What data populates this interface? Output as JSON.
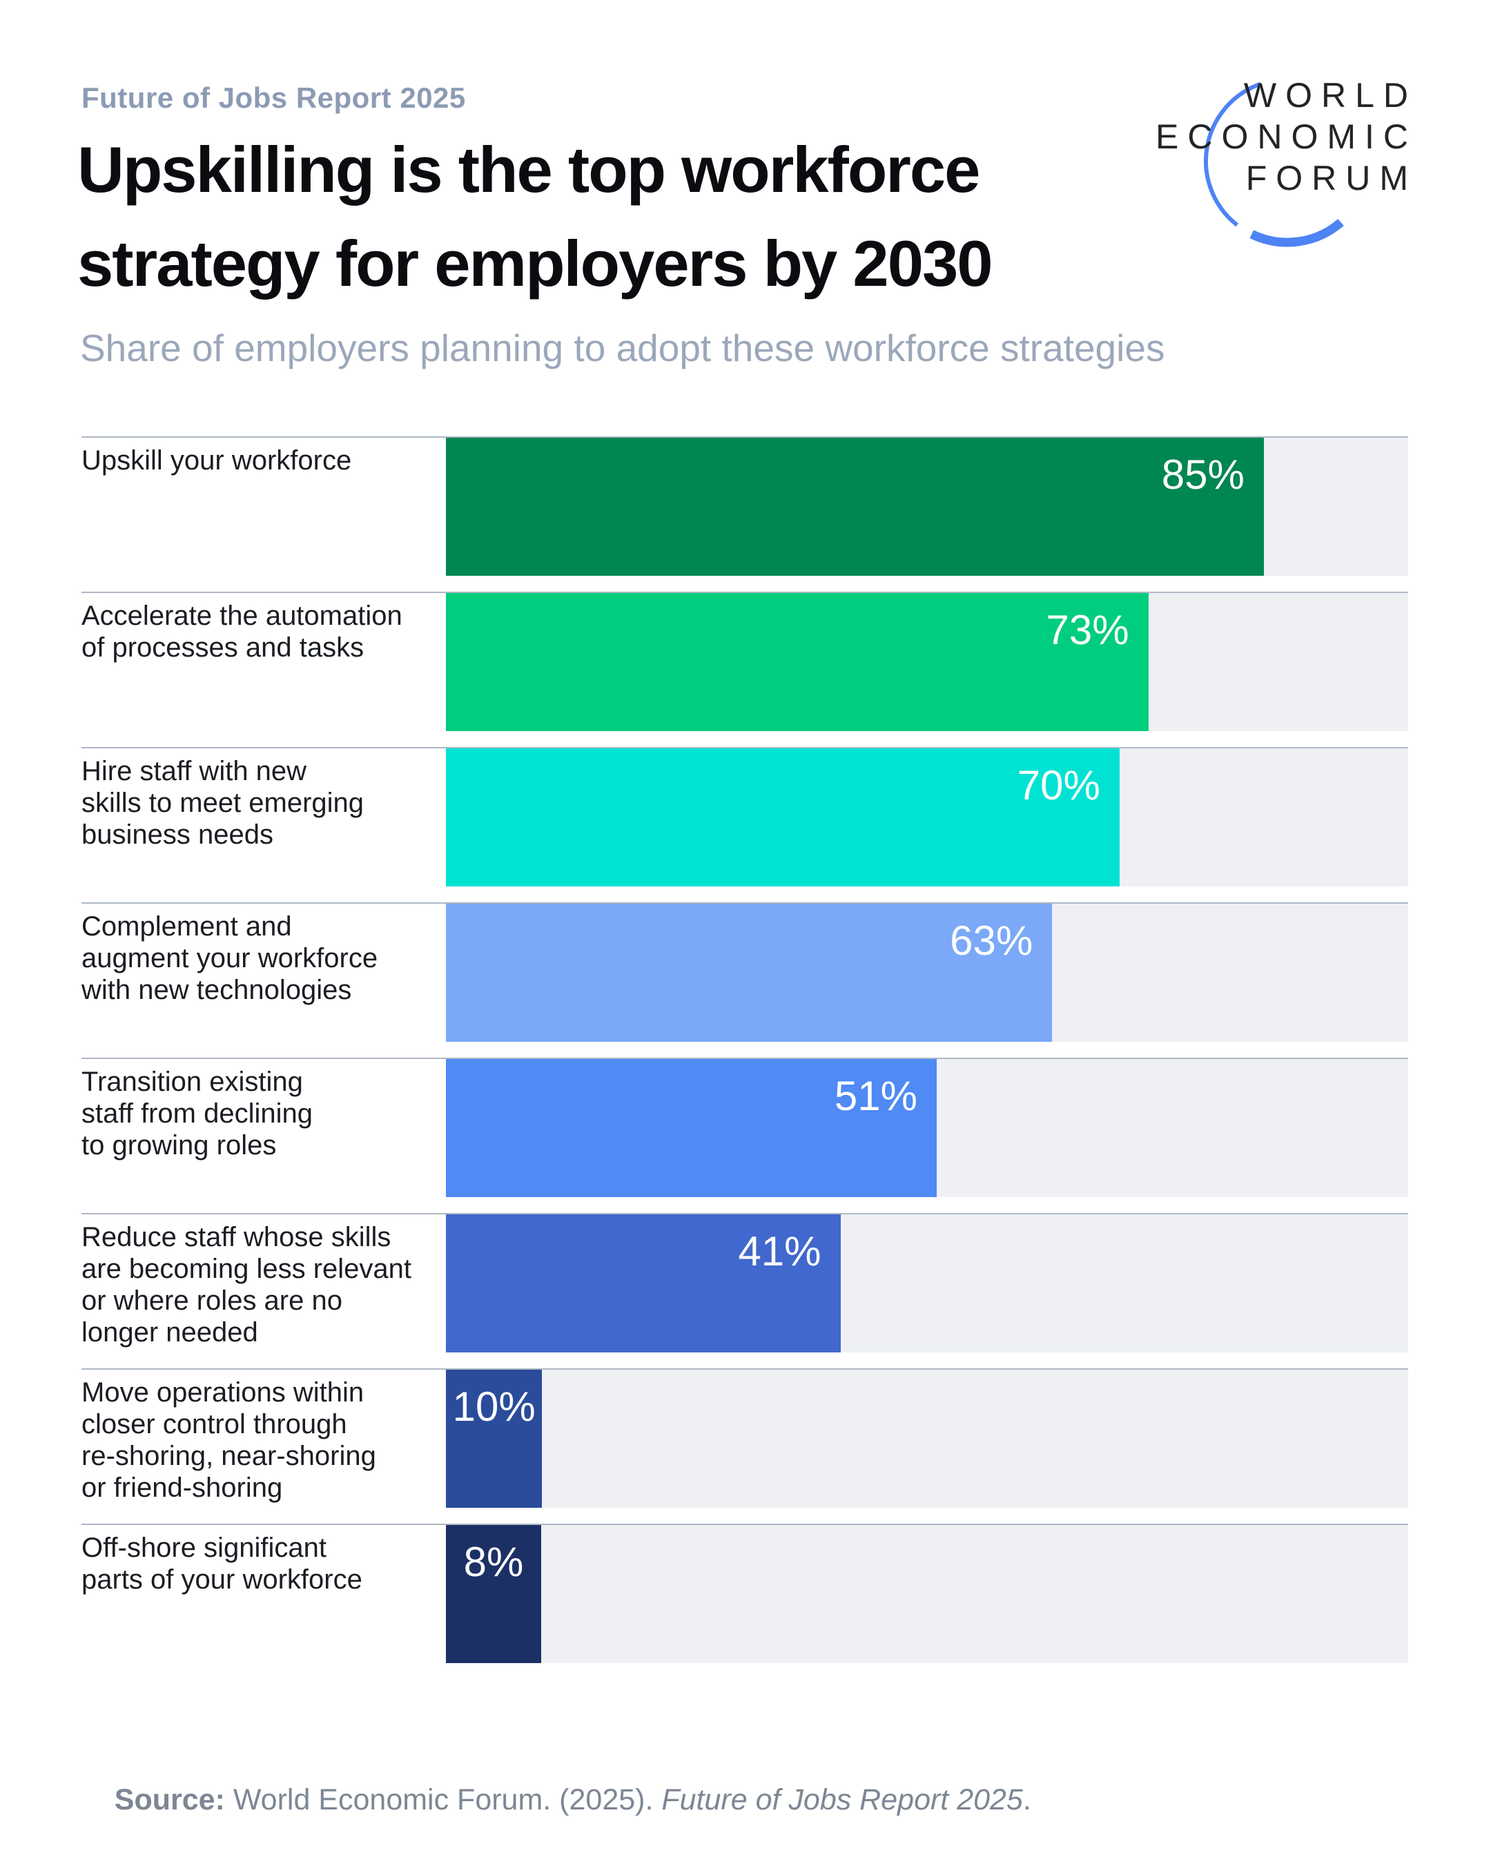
{
  "header": {
    "report_label": "Future of Jobs Report 2025",
    "title": "Upskilling is the top workforce\nstrategy for employers by 2030",
    "subtitle": "Share of employers planning to adopt these workforce strategies"
  },
  "logo": {
    "lines": [
      "WORLD",
      "ECONOMIC",
      "FORUM"
    ],
    "text_color": "#222528",
    "arc_color": "#4E83F4"
  },
  "chart_data": {
    "type": "bar",
    "orientation": "horizontal",
    "title": "Upskilling is the top workforce strategy for employers by 2030",
    "subtitle": "Share of employers planning to adopt these workforce strategies",
    "xlim": [
      0,
      100
    ],
    "grid": false,
    "legend": "none",
    "value_suffix": "%",
    "categories": [
      "Upskill your workforce",
      "Accelerate the automation\nof processes and tasks",
      "Hire staff with new\nskills to meet emerging\nbusiness needs",
      "Complement and\naugment your workforce\nwith new technologies",
      "Transition existing\nstaff from declining\nto growing roles",
      "Reduce staff whose skills\nare becoming less relevant\nor where roles are no\nlonger needed",
      "Move operations within\ncloser control through\nre-shoring, near-shoring\nor friend-shoring",
      "Off-shore significant\nparts of your workforce"
    ],
    "values": [
      85,
      73,
      70,
      63,
      51,
      41,
      10,
      8
    ],
    "value_labels": [
      "85%",
      "73%",
      "70%",
      "63%",
      "51%",
      "41%",
      "10%",
      "8%"
    ],
    "bar_colors": [
      "#008651",
      "#00CD7E",
      "#00E3D2",
      "#7BA9F7",
      "#4F8AF5",
      "#4168CE",
      "#2B4C9B",
      "#1B3064"
    ],
    "track_color": "#EEF0F3",
    "separator_color": "#AEB7C4",
    "value_label_color": "#ffffff"
  },
  "source": {
    "prefix": "Source:",
    "body": " World Economic Forum. (2025). ",
    "italic": "Future of Jobs Report 2025",
    "suffix": "."
  }
}
